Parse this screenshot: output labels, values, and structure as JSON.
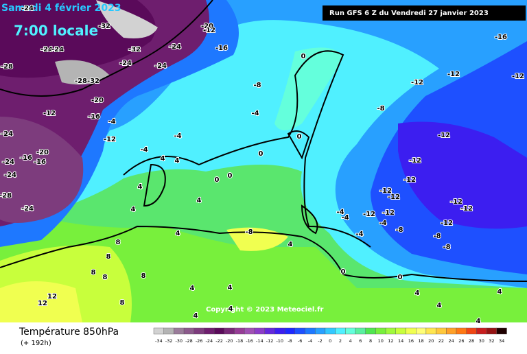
{
  "header": {
    "date": "Samedi 4 février 2023",
    "time": "7:00 locale",
    "run": "Run GFS 6 Z du Vendredi 27 janvier 2023"
  },
  "map": {
    "copyright": "Copyright © 2023 Meteociel.fr",
    "contour_labels": [
      -24,
      -32,
      -20,
      -12,
      -16,
      -16,
      -28,
      -24,
      -24,
      -32,
      -24,
      -24,
      -24,
      -28,
      -32,
      -20,
      -12,
      -16,
      -24,
      -20,
      -16,
      -16,
      -24,
      -24,
      -28,
      -24,
      -12,
      -8,
      -4,
      -4,
      -4,
      -4,
      0,
      -12,
      -12,
      -12,
      -8,
      -12,
      -12,
      -12,
      -12,
      -12,
      -12,
      -12,
      -12,
      -12,
      -12,
      -8,
      -8,
      -8,
      -4,
      -4,
      -4,
      -4,
      -8,
      4,
      4,
      8,
      8,
      8,
      8,
      12,
      12,
      8,
      0,
      0,
      4,
      4,
      4,
      4,
      4,
      4,
      0,
      0,
      0,
      0,
      4,
      4,
      4,
      4,
      8,
      4,
      4,
      4
    ]
  },
  "footer": {
    "title": "Température 850hPa",
    "lead": "(+ 192h)"
  },
  "legend": {
    "ticks": [
      -34,
      -32,
      -30,
      -28,
      -26,
      -24,
      -22,
      -20,
      -18,
      -16,
      -14,
      -12,
      -10,
      -8,
      -6,
      -4,
      -2,
      0,
      2,
      4,
      6,
      8,
      10,
      12,
      14,
      16,
      18,
      20,
      22,
      24,
      26,
      28,
      30,
      32,
      34
    ],
    "colors": [
      "#d2d2d2",
      "#b4b4b4",
      "#9a7c9a",
      "#8c5a8c",
      "#7d3c7d",
      "#6e1e6e",
      "#5a0a5a",
      "#782878",
      "#963c96",
      "#a050b4",
      "#8c3cc8",
      "#6428dc",
      "#3c1ef0",
      "#1e28ff",
      "#1e50ff",
      "#1e78ff",
      "#28a0ff",
      "#32c8ff",
      "#50f0ff",
      "#64ffdc",
      "#5af0a0",
      "#50e650",
      "#78f03c",
      "#a0fa3c",
      "#c8ff3c",
      "#f0ff50",
      "#ffff78",
      "#ffe650",
      "#ffc83c",
      "#ffa028",
      "#ff7814",
      "#f04614",
      "#c81e1e",
      "#961414",
      "#1e0000"
    ]
  }
}
